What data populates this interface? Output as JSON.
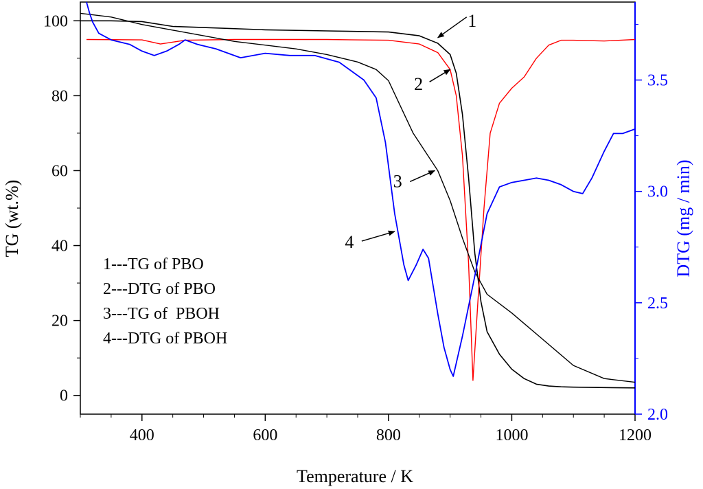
{
  "chart_data": {
    "type": "line",
    "title": "",
    "xlabel": "Temperature / K",
    "ylabel_left": "TG (wt.%)",
    "ylabel_right": "DTG (mg / min)",
    "xlim": [
      300,
      1200
    ],
    "ylim_left": [
      -5,
      105
    ],
    "ylim_right": [
      2.0,
      3.85
    ],
    "x_ticks": [
      400,
      600,
      800,
      1000,
      1200
    ],
    "y_ticks_left": [
      0,
      20,
      40,
      60,
      80,
      100
    ],
    "y_ticks_right": [
      2.0,
      2.5,
      3.0,
      3.5
    ],
    "y_tick_labels_right": [
      "2.0",
      "2.5",
      "3.0",
      "3.5"
    ],
    "colors": {
      "tg_pbo": "#000000",
      "dtg_pbo": "#ff0000",
      "tg_pboh": "#000000",
      "dtg_pboh": "#0000ff",
      "right_axis": "#0000ff"
    },
    "series": [
      {
        "name": "1---TG of PBO",
        "axis": "left",
        "x": [
          300,
          350,
          400,
          450,
          500,
          600,
          700,
          800,
          850,
          880,
          900,
          910,
          920,
          930,
          940,
          950,
          960,
          980,
          1000,
          1020,
          1040,
          1060,
          1080,
          1100,
          1150,
          1200
        ],
        "y": [
          100,
          100,
          99.8,
          98.5,
          98.2,
          97.6,
          97.3,
          97,
          96,
          94,
          91,
          86,
          75,
          58,
          38,
          25,
          17,
          11,
          7,
          4.5,
          3,
          2.5,
          2.3,
          2.2,
          2.1,
          2
        ]
      },
      {
        "name": "2---DTG of PBO",
        "axis": "left",
        "x": [
          310,
          400,
          430,
          470,
          550,
          700,
          800,
          850,
          880,
          900,
          910,
          920,
          930,
          937,
          945,
          955,
          965,
          980,
          1000,
          1020,
          1040,
          1060,
          1080,
          1100,
          1150,
          1200
        ],
        "y": [
          95,
          94.9,
          93.8,
          94.8,
          95,
          95,
          94.8,
          93.8,
          91.5,
          87,
          80,
          64,
          35,
          4,
          25,
          50,
          70,
          78,
          82,
          85,
          90,
          93.5,
          94.8,
          94.8,
          94.6,
          95
        ]
      },
      {
        "name": "3---TG of  PBOH",
        "axis": "left",
        "x": [
          300,
          350,
          400,
          450,
          500,
          550,
          600,
          650,
          700,
          750,
          780,
          800,
          820,
          840,
          860,
          880,
          900,
          920,
          940,
          960,
          1000,
          1050,
          1100,
          1150,
          1200
        ],
        "y": [
          102,
          101,
          99,
          97.5,
          96,
          94.5,
          93.5,
          92.5,
          91,
          89,
          87,
          84,
          77,
          70,
          65,
          60,
          52,
          42,
          33,
          27,
          22,
          15,
          8,
          4.5,
          3.5
        ]
      },
      {
        "name": "4---DTG of PBOH",
        "axis": "right",
        "x": [
          310,
          315,
          320,
          330,
          350,
          380,
          400,
          420,
          440,
          460,
          470,
          490,
          520,
          560,
          600,
          640,
          680,
          720,
          760,
          780,
          795,
          810,
          825,
          832,
          845,
          856,
          865,
          880,
          890,
          900,
          905,
          920,
          940,
          960,
          980,
          1000,
          1020,
          1040,
          1060,
          1080,
          1100,
          1115,
          1130,
          1150,
          1165,
          1180,
          1200
        ],
        "y": [
          3.85,
          3.8,
          3.76,
          3.71,
          3.68,
          3.66,
          3.63,
          3.61,
          3.63,
          3.66,
          3.68,
          3.66,
          3.64,
          3.6,
          3.62,
          3.61,
          3.61,
          3.58,
          3.5,
          3.42,
          3.22,
          2.9,
          2.67,
          2.6,
          2.67,
          2.74,
          2.7,
          2.45,
          2.3,
          2.2,
          2.17,
          2.35,
          2.62,
          2.9,
          3.02,
          3.04,
          3.05,
          3.06,
          3.05,
          3.03,
          3.0,
          2.99,
          3.06,
          3.18,
          3.26,
          3.26,
          3.28
        ]
      }
    ],
    "legend": {
      "position": "bottom-left",
      "entries": [
        "1---TG of PBO",
        "2---DTG of PBO",
        "3---TG of  PBOH",
        "4---DTG of PBOH"
      ]
    },
    "annotations": [
      {
        "text": "1",
        "target_x": 880,
        "target_y": 95.5,
        "axis": "left"
      },
      {
        "text": "2",
        "target_x": 900,
        "target_y": 87,
        "axis": "left"
      },
      {
        "text": "3",
        "target_x": 875,
        "target_y": 60,
        "axis": "left"
      },
      {
        "text": "4",
        "target_x": 810,
        "target_y": 2.82,
        "axis": "right"
      }
    ]
  }
}
